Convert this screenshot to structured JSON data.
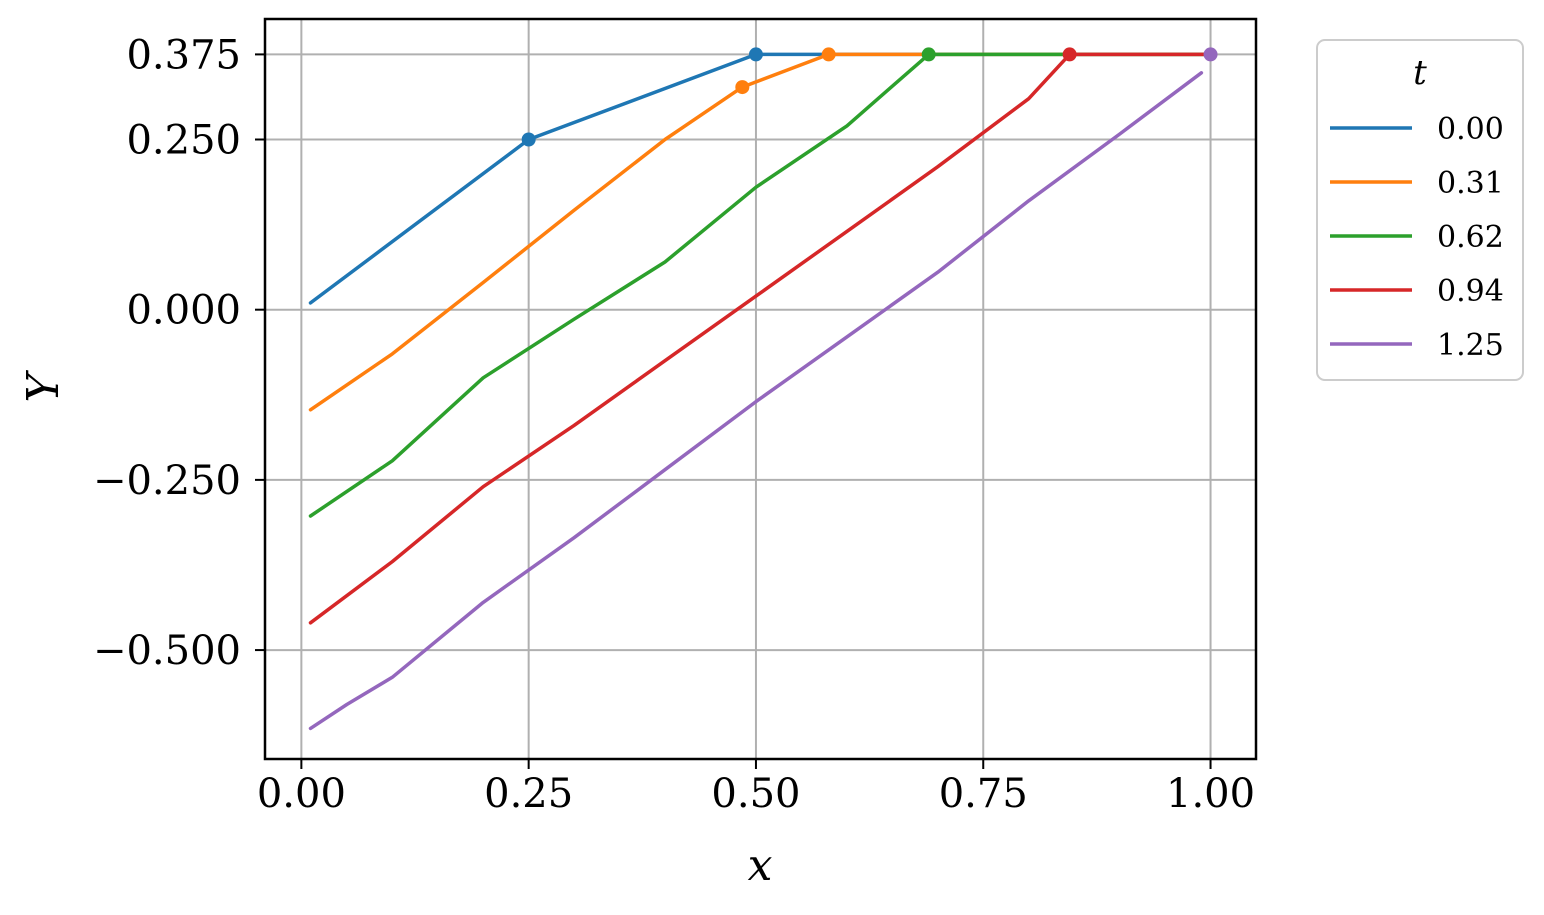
{
  "chart_data": {
    "type": "line",
    "xlabel": "x",
    "ylabel": "Y",
    "xlim": [
      -0.04,
      1.05
    ],
    "ylim": [
      -0.66,
      0.427
    ],
    "x_ticks": [
      0.0,
      0.25,
      0.5,
      0.75,
      1.0
    ],
    "x_tick_labels": [
      "0.00",
      "0.25",
      "0.50",
      "0.75",
      "1.00"
    ],
    "y_ticks": [
      -0.5,
      -0.25,
      0.0,
      0.25,
      0.375
    ],
    "y_tick_labels": [
      "−0.500",
      "−0.250",
      "0.000",
      "0.250",
      "0.375"
    ],
    "grid": true,
    "legend": {
      "title": "t",
      "placement": "outside-right-top"
    },
    "series": [
      {
        "name": "0.00",
        "color": "#1f77b4",
        "x": [
          0.01,
          0.25,
          0.5,
          0.58,
          0.69,
          0.85,
          1.0
        ],
        "y": [
          0.01,
          0.25,
          0.375,
          0.375,
          0.375,
          0.375,
          0.375
        ],
        "marker": {
          "x": [
            0.25,
            0.5
          ],
          "y": [
            0.25,
            0.375
          ]
        }
      },
      {
        "name": "0.31",
        "color": "#ff7f0e",
        "x": [
          0.01,
          0.1,
          0.2,
          0.3,
          0.4,
          0.485,
          0.58,
          0.69,
          0.85,
          1.0
        ],
        "y": [
          -0.147,
          -0.065,
          0.04,
          0.146,
          0.25,
          0.327,
          0.375,
          0.375,
          0.375,
          0.375
        ],
        "marker": {
          "x": [
            0.485,
            0.58
          ],
          "y": [
            0.327,
            0.375
          ]
        }
      },
      {
        "name": "0.62",
        "color": "#2ca02c",
        "x": [
          0.01,
          0.1,
          0.2,
          0.3,
          0.4,
          0.5,
          0.6,
          0.69,
          0.72,
          0.85,
          1.0
        ],
        "y": [
          -0.303,
          -0.222,
          -0.1,
          -0.014,
          0.07,
          0.18,
          0.27,
          0.375,
          0.375,
          0.375,
          0.375
        ],
        "marker": {
          "x": [
            0.69
          ],
          "y": [
            0.375
          ]
        }
      },
      {
        "name": "0.94",
        "color": "#d62728",
        "x": [
          0.01,
          0.1,
          0.2,
          0.3,
          0.4,
          0.5,
          0.6,
          0.7,
          0.8,
          0.845,
          0.875,
          1.0
        ],
        "y": [
          -0.46,
          -0.37,
          -0.26,
          -0.17,
          -0.075,
          0.02,
          0.115,
          0.21,
          0.31,
          0.375,
          0.375,
          0.375
        ],
        "marker": {
          "x": [
            0.845
          ],
          "y": [
            0.375
          ]
        }
      },
      {
        "name": "1.25",
        "color": "#9467bd",
        "x": [
          0.01,
          0.05,
          0.1,
          0.2,
          0.3,
          0.4,
          0.5,
          0.6,
          0.7,
          0.8,
          0.9,
          0.99
        ],
        "y": [
          -0.615,
          -0.58,
          -0.54,
          -0.43,
          -0.335,
          -0.235,
          -0.135,
          -0.04,
          0.055,
          0.16,
          0.258,
          0.348
        ],
        "marker": {
          "x": [
            1.0
          ],
          "y": [
            0.375
          ]
        }
      }
    ]
  }
}
